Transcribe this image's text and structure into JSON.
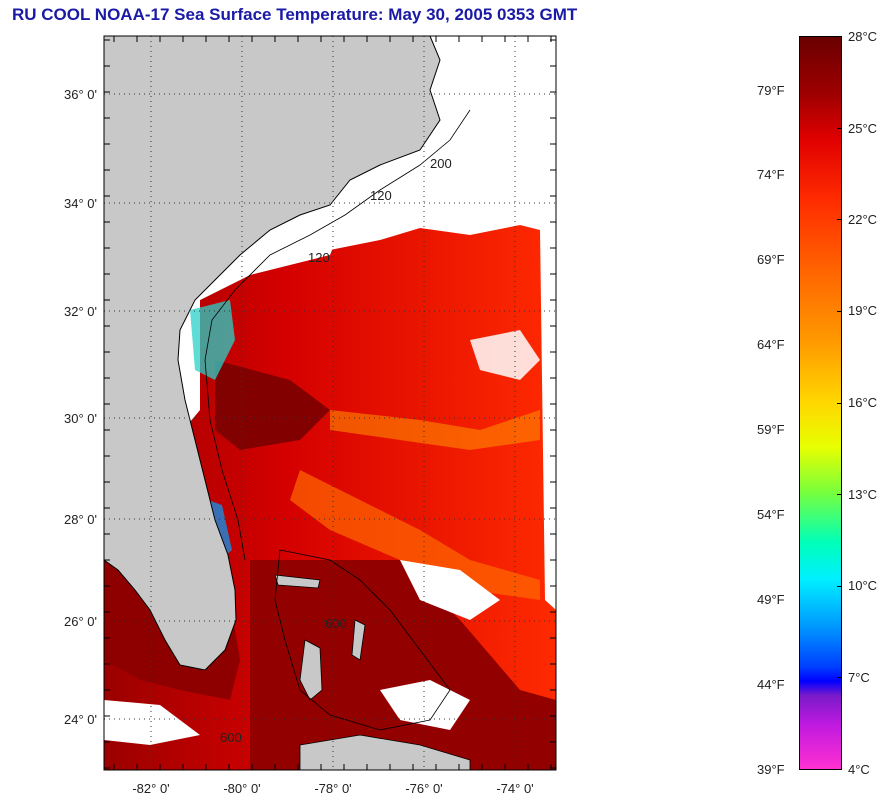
{
  "title": "RU COOL  NOAA-17  Sea Surface Temperature:  May 30, 2005 0353 GMT",
  "map": {
    "lat_labels": [
      "36° 0'",
      "34° 0'",
      "32° 0'",
      "30° 0'",
      "28° 0'",
      "26° 0'",
      "24° 0'"
    ],
    "lon_labels": [
      "-82° 0'",
      "-80° 0'",
      "-78° 0'",
      "-76° 0'",
      "-74° 0'"
    ],
    "contour_labels": [
      "120",
      "120",
      "200",
      "600",
      "600"
    ],
    "colors": {
      "land": "#c8c8c8",
      "sst_hot": "#8b0000",
      "sst_warm": "#e01000",
      "cloud": "#ffffff"
    }
  },
  "colorbar": {
    "celsius_labels": [
      "28°C",
      "25°C",
      "22°C",
      "19°C",
      "16°C",
      "13°C",
      "10°C",
      "7°C",
      "4°C"
    ],
    "fahrenheit_labels": [
      "79°F",
      "74°F",
      "69°F",
      "64°F",
      "59°F",
      "54°F",
      "49°F",
      "44°F",
      "39°F"
    ]
  }
}
